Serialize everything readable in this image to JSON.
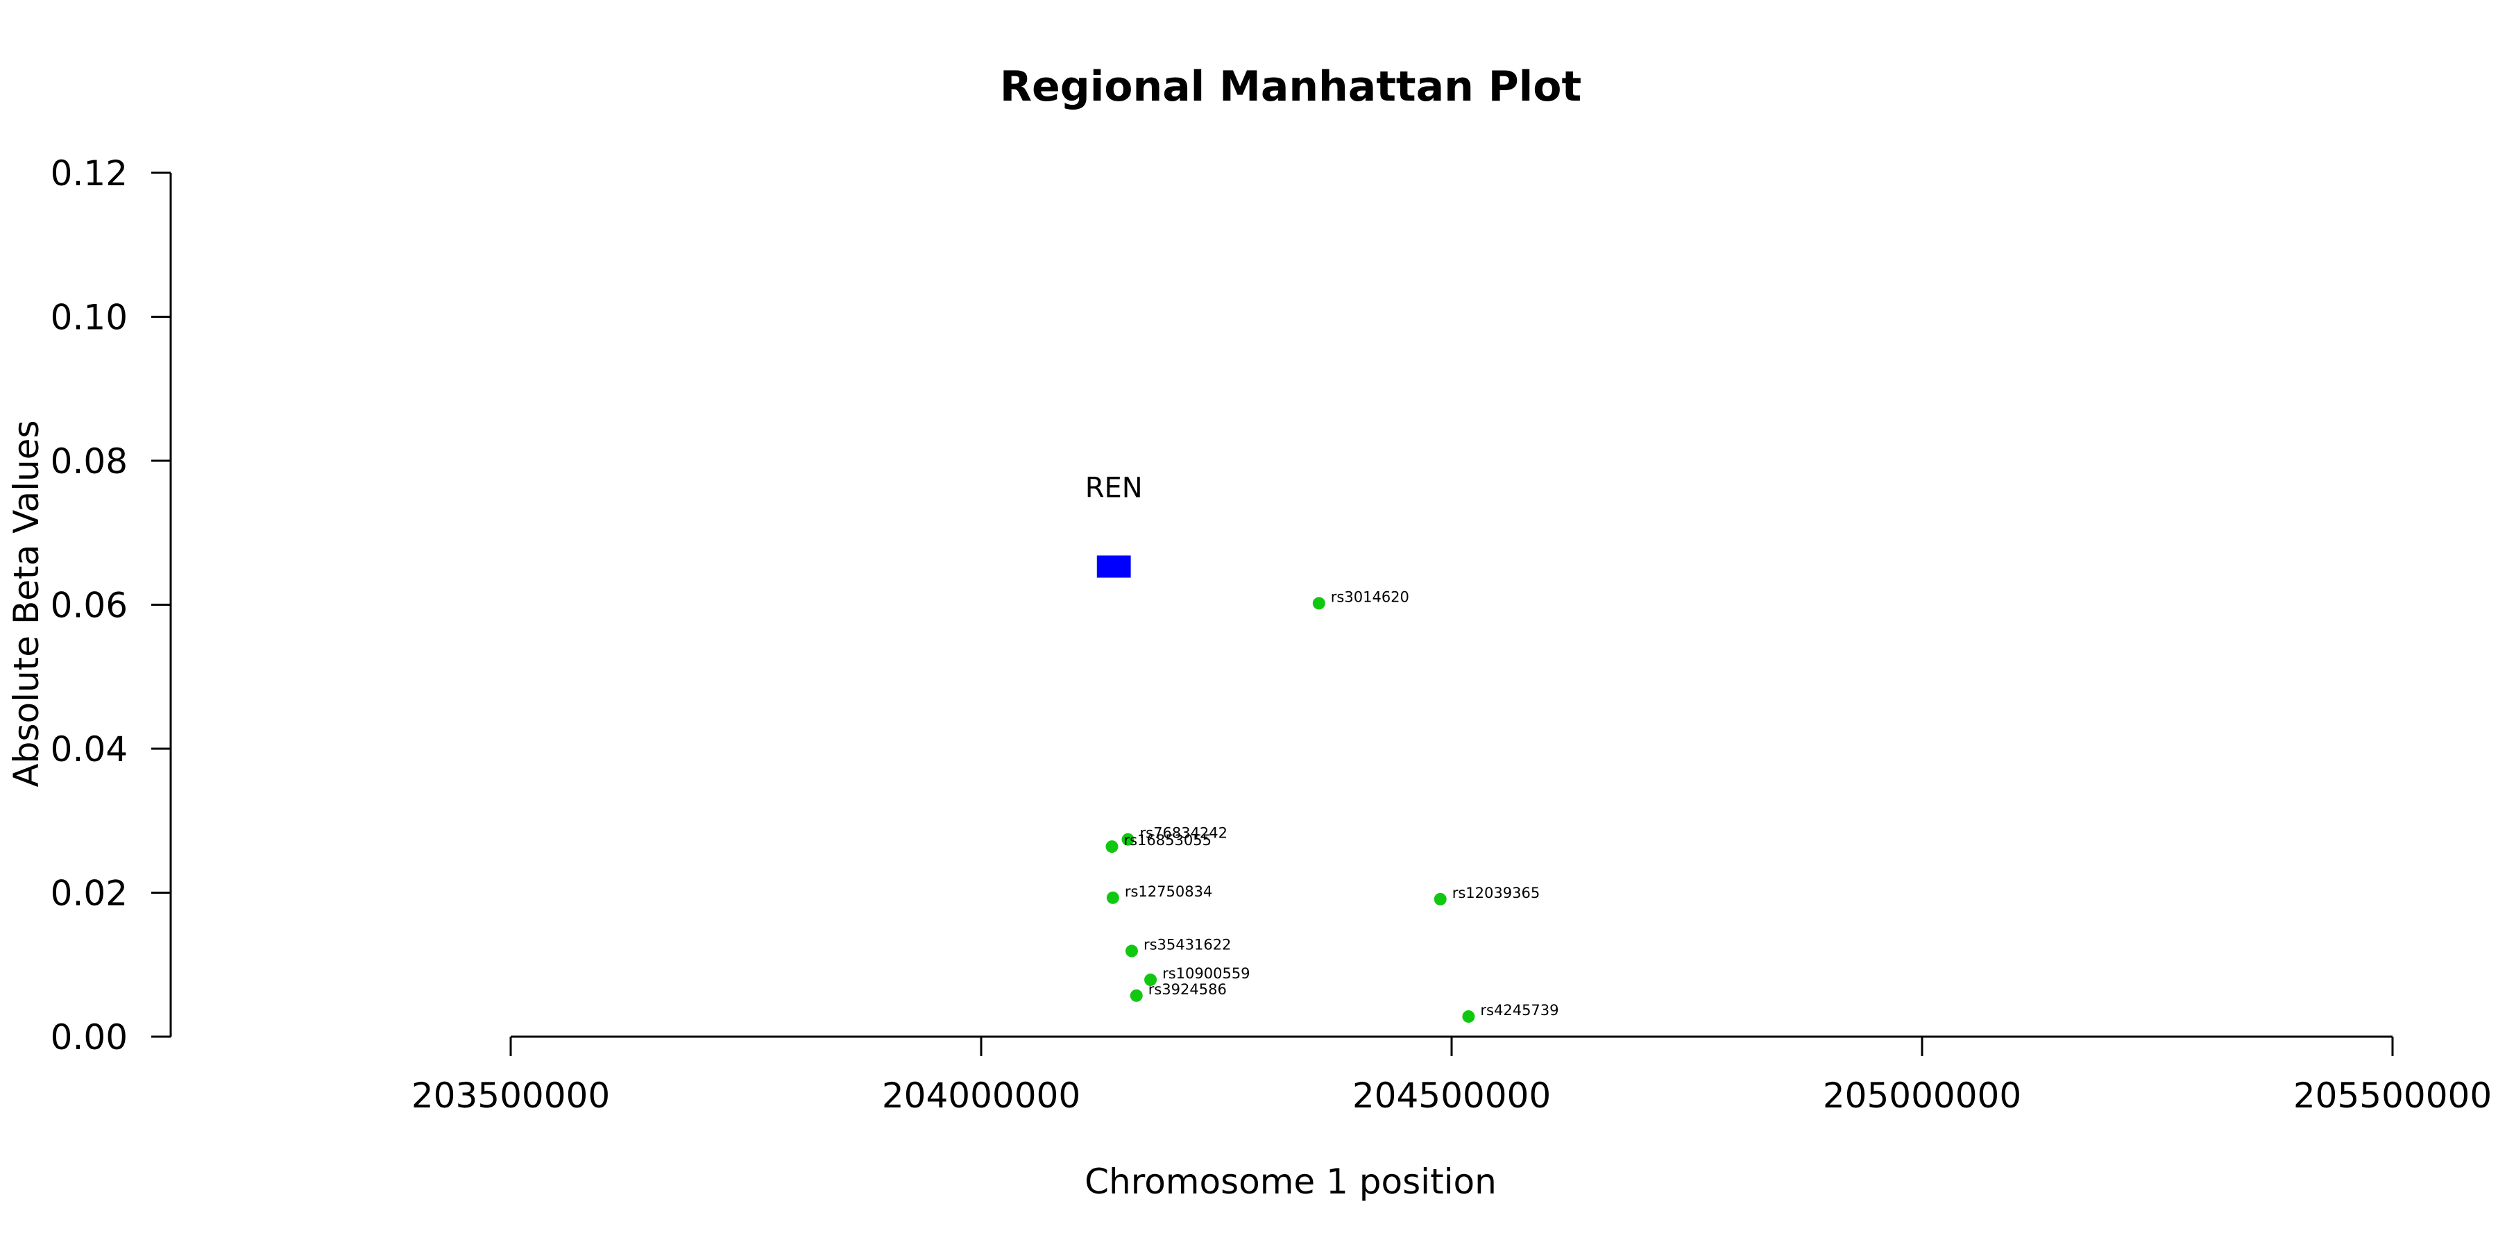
{
  "chart_data": {
    "type": "scatter",
    "title": "Regional Manhattan Plot",
    "xlabel": "Chromosome 1 position",
    "ylabel": "Absolute Beta Values",
    "xlim": [
      203500000,
      205500000
    ],
    "ylim": [
      0,
      0.12
    ],
    "x_ticks": [
      "203500000",
      "204000000",
      "204500000",
      "205000000",
      "205500000"
    ],
    "y_ticks": [
      "0.00",
      "0.02",
      "0.04",
      "0.06",
      "0.08",
      "0.10",
      "0.12"
    ],
    "grid": false,
    "point_color": "#11c811",
    "gene_color": "#0000ff",
    "points": [
      {
        "label": "rs3014620",
        "x": 204359000,
        "y": 0.0602
      },
      {
        "label": "rs76834242",
        "x": 204156000,
        "y": 0.0274
      },
      {
        "label": "rs16853055",
        "x": 204139000,
        "y": 0.0264
      },
      {
        "label": "rs12750834",
        "x": 204140000,
        "y": 0.0193
      },
      {
        "label": "rs12039365",
        "x": 204488000,
        "y": 0.0191
      },
      {
        "label": "rs35431622",
        "x": 204160000,
        "y": 0.0119
      },
      {
        "label": "rs10900559",
        "x": 204180000,
        "y": 0.0079
      },
      {
        "label": "rs3924586",
        "x": 204165000,
        "y": 0.0057
      },
      {
        "label": "rs4245739",
        "x": 204518000,
        "y": 0.0028
      }
    ],
    "genes": [
      {
        "name": "REN",
        "start": 204123000,
        "end": 204159000,
        "y": 0.0653
      }
    ]
  }
}
